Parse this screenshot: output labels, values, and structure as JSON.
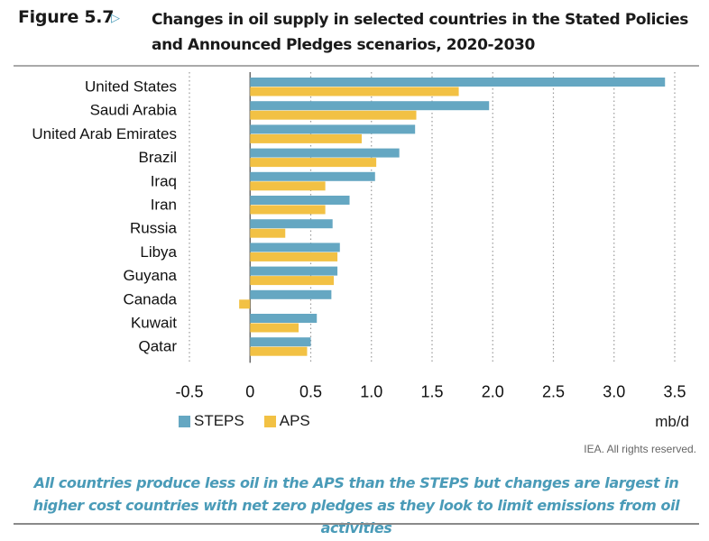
{
  "figure": {
    "label": "Figure 5.7",
    "arrow_icon": "triangle-right-icon",
    "title": "Changes in oil supply in selected countries in the Stated Policies and Announced Pledges scenarios, 2020-2030"
  },
  "legend": {
    "items": [
      {
        "label": "STEPS",
        "color": "#65a7c2"
      },
      {
        "label": "APS",
        "color": "#f2c144"
      }
    ]
  },
  "unit_label": "mb/d",
  "credit": "IEA. All rights reserved.",
  "caption": "All countries produce less oil in the APS than the STEPS but changes are largest in higher cost countries with net zero pledges as they look to limit emissions from oil activities",
  "chart_data": {
    "type": "bar",
    "orientation": "horizontal",
    "title": "Changes in oil supply in selected countries in the Stated Policies and Announced Pledges scenarios, 2020-2030",
    "xlabel": "mb/d",
    "ylabel": "",
    "xlim": [
      -0.5,
      3.5
    ],
    "xticks": [
      -0.5,
      0,
      0.5,
      1.0,
      1.5,
      2.0,
      2.5,
      3.0,
      3.5
    ],
    "xtick_labels": [
      "-0.5",
      "0",
      "0.5",
      "1.0",
      "1.5",
      "2.0",
      "2.5",
      "3.0",
      "3.5"
    ],
    "grid": "vertical-dotted",
    "legend_position": "bottom-left",
    "categories": [
      "United States",
      "Saudi Arabia",
      "United Arab Emirates",
      "Brazil",
      "Iraq",
      "Iran",
      "Russia",
      "Libya",
      "Guyana",
      "Canada",
      "Kuwait",
      "Qatar"
    ],
    "series": [
      {
        "name": "STEPS",
        "color": "#65a7c2",
        "values": [
          3.42,
          1.97,
          1.36,
          1.23,
          1.03,
          0.82,
          0.68,
          0.74,
          0.72,
          0.67,
          0.55,
          0.5
        ]
      },
      {
        "name": "APS",
        "color": "#f2c144",
        "values": [
          1.72,
          1.37,
          0.92,
          1.04,
          0.62,
          0.62,
          0.29,
          0.72,
          0.69,
          -0.09,
          0.4,
          0.47
        ]
      }
    ]
  }
}
